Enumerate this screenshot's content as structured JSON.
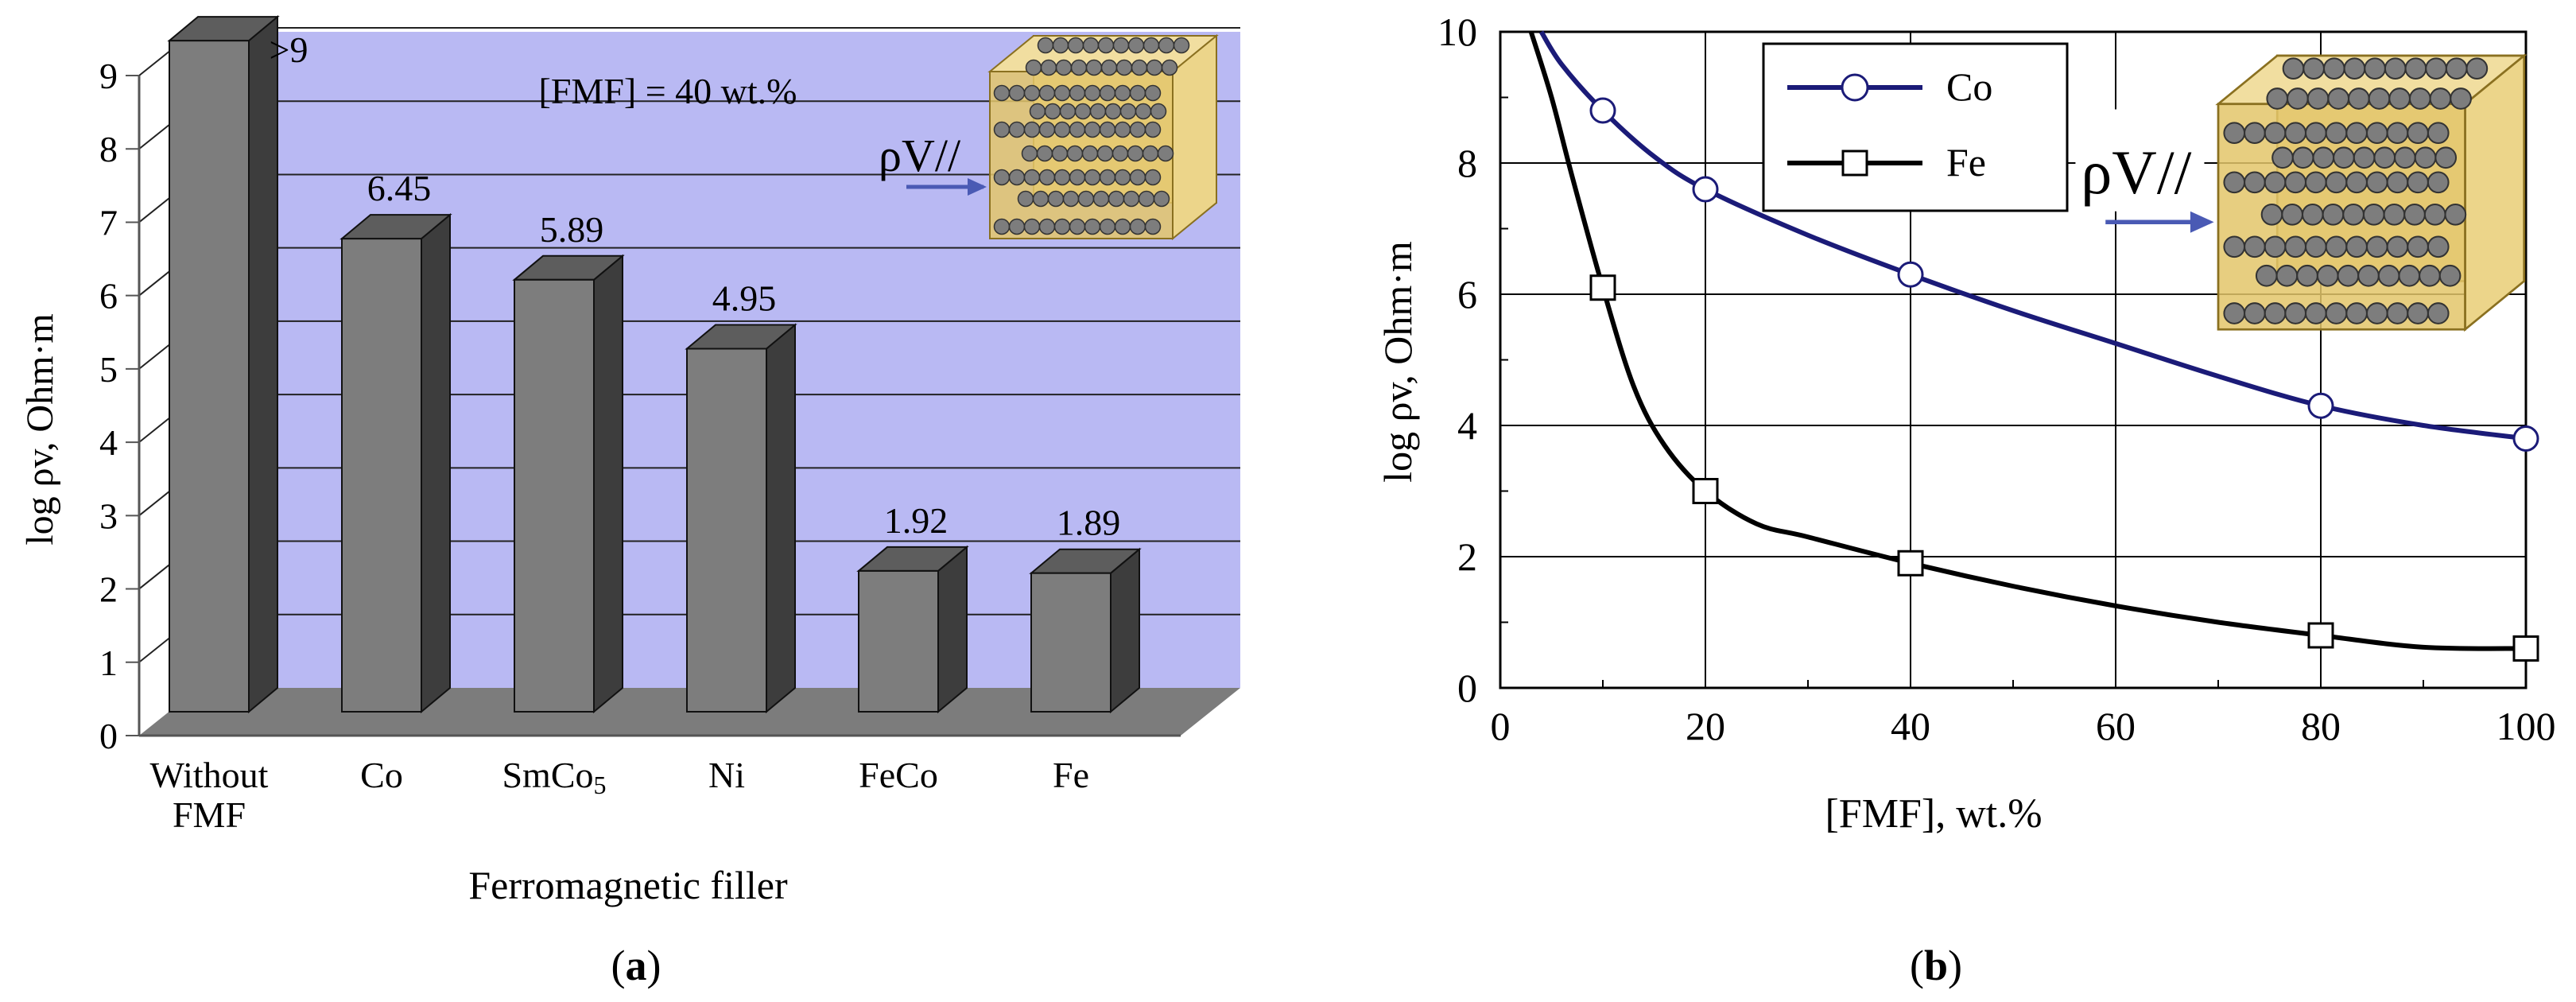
{
  "colors": {
    "wall": "#b9b9f3",
    "floor": "#7c7c7c",
    "bar_front": "#7d7d7d",
    "bar_top": "#5d5d5d",
    "bar_side": "#3d3d3d",
    "line_co": "#1b1b78",
    "line_fe": "#000000",
    "arrow": "#4a5ab4",
    "cube_front": "#e3c66a",
    "cube_back": "#f1dea0",
    "sphere": "#7d7d7d"
  },
  "chart_data": [
    {
      "panel": "(a)",
      "type": "bar",
      "title": "[FMF] = 40 wt.%",
      "xlabel": "Ferromagnetic filler",
      "ylabel": "log ρv, Ohm·m",
      "ylim": [
        0,
        9
      ],
      "yticks": [
        "0",
        "1",
        "2",
        "3",
        "4",
        "5",
        "6",
        "7",
        "8",
        "9"
      ],
      "categories": [
        "Without FMF",
        "Co",
        "SmCo5",
        "Ni",
        "FeCo",
        "Fe"
      ],
      "category_lines": [
        [
          "Without",
          "FMF"
        ],
        [
          "Co"
        ],
        [
          "SmCo",
          "5"
        ],
        [
          "Ni"
        ],
        [
          "FeCo"
        ],
        [
          "Fe"
        ]
      ],
      "values": [
        9.15,
        6.45,
        5.89,
        4.95,
        1.92,
        1.89
      ],
      "value_labels": [
        ">9",
        "6.45",
        "5.89",
        "4.95",
        "1.92",
        "1.89"
      ],
      "inset_label": "ρV//"
    },
    {
      "panel": "(b)",
      "type": "line",
      "xlabel": "[FMF], wt.%",
      "ylabel": "log ρv, Ohm·m",
      "xlim": [
        0,
        100
      ],
      "ylim": [
        0,
        10
      ],
      "xticks": [
        0,
        20,
        40,
        60,
        80,
        100
      ],
      "yticks": [
        0,
        2,
        4,
        6,
        8,
        10
      ],
      "inset_label": "ρV//",
      "series": [
        {
          "name": "Co",
          "marker": "circle",
          "x": [
            10,
            20,
            40,
            80,
            100
          ],
          "values": [
            8.8,
            7.6,
            6.3,
            4.3,
            3.8
          ],
          "curve_x": [
            4,
            6,
            10,
            15,
            20,
            30,
            40,
            50,
            60,
            70,
            80,
            90,
            100
          ],
          "curve_y": [
            10.0,
            9.5,
            8.8,
            8.1,
            7.6,
            6.9,
            6.3,
            5.75,
            5.25,
            4.75,
            4.3,
            4.0,
            3.8
          ]
        },
        {
          "name": "Fe",
          "marker": "square",
          "x": [
            10,
            20,
            40,
            80,
            100
          ],
          "values": [
            6.1,
            3.0,
            1.9,
            0.8,
            0.6
          ],
          "curve_x": [
            3,
            5,
            7,
            10,
            13,
            16,
            20,
            25,
            30,
            40,
            50,
            60,
            70,
            80,
            90,
            100
          ],
          "curve_y": [
            10.0,
            9.0,
            7.8,
            6.1,
            4.6,
            3.7,
            3.0,
            2.5,
            2.3,
            1.9,
            1.55,
            1.25,
            1.0,
            0.8,
            0.62,
            0.6
          ]
        }
      ]
    }
  ]
}
